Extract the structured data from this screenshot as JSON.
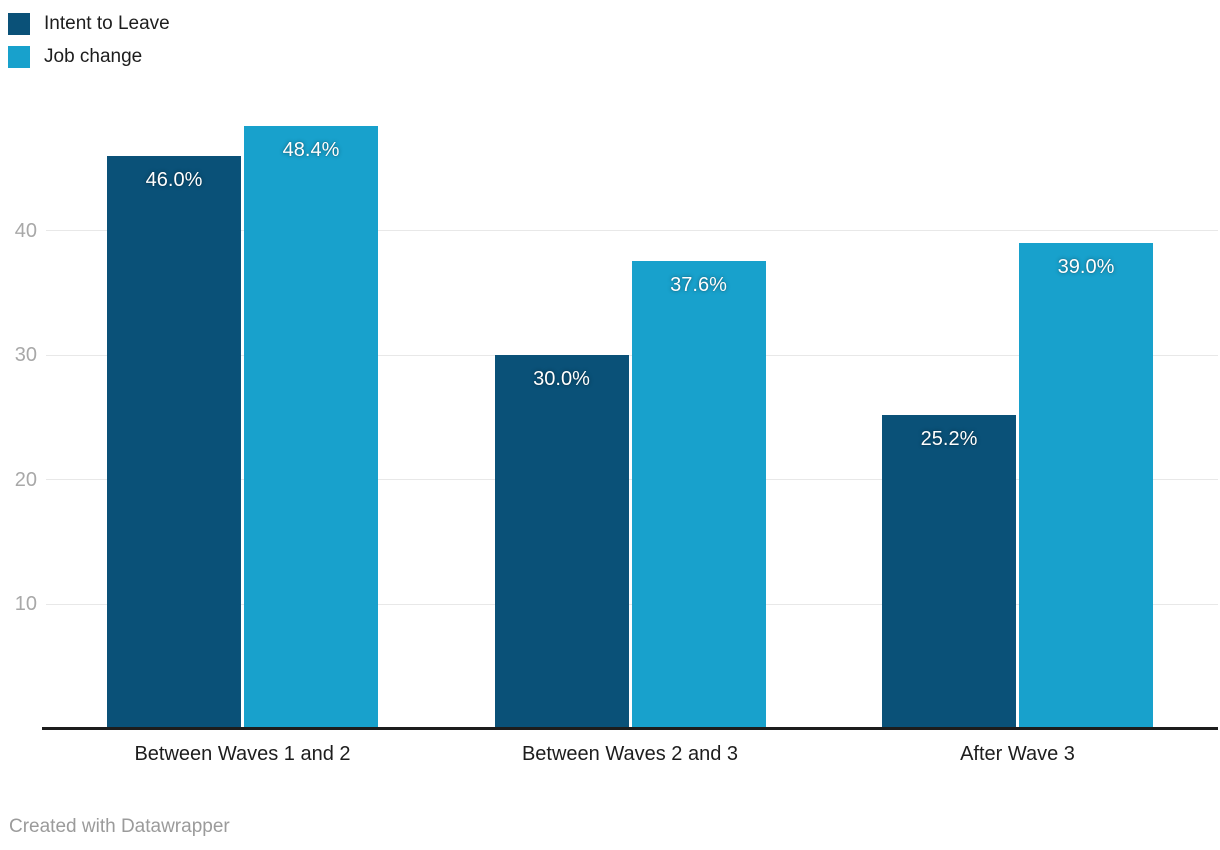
{
  "legend": {
    "items": [
      {
        "label": "Intent to Leave",
        "color": "#0a5178"
      },
      {
        "label": "Job change",
        "color": "#18a1cc"
      }
    ]
  },
  "footer": {
    "credit": "Created with Datawrapper"
  },
  "chart_data": {
    "type": "bar",
    "categories": [
      "Between Waves 1 and 2",
      "Between Waves 2 and 3",
      "After Wave 3"
    ],
    "series": [
      {
        "name": "Intent to Leave",
        "color": "#0a5178",
        "values": [
          46.0,
          30.0,
          25.2
        ],
        "labels": [
          "46.0%",
          "30.0%",
          "25.2%"
        ]
      },
      {
        "name": "Job change",
        "color": "#18a1cc",
        "values": [
          48.4,
          37.6,
          39.0
        ],
        "labels": [
          "48.4%",
          "37.6%",
          "39.0%"
        ]
      }
    ],
    "y_ticks": [
      10,
      20,
      30,
      40
    ],
    "ylim": [
      0,
      50.6
    ],
    "grid": true,
    "grid_color": "#e8e8e8",
    "axis_line_color": "#1d1d1d",
    "value_label_color": "#ffffff",
    "legend_position": "top-left",
    "title": "",
    "xlabel": "",
    "ylabel": ""
  }
}
